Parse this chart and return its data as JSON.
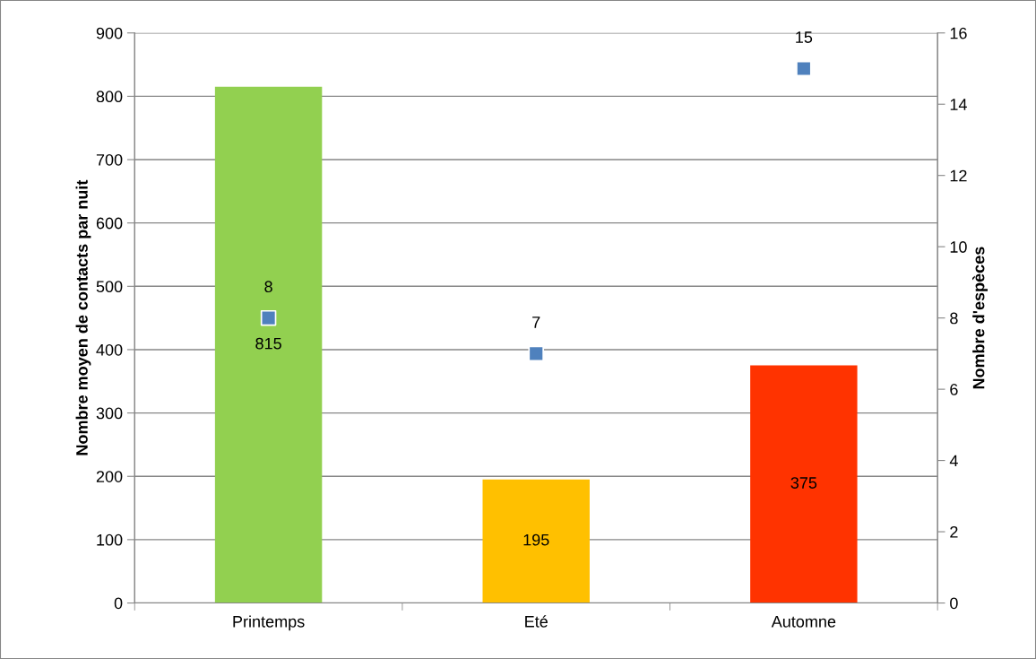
{
  "chart_data": {
    "type": "bar",
    "categories": [
      "Printemps",
      "Eté",
      "Automne"
    ],
    "series": [
      {
        "values": [
          815,
          195,
          375
        ],
        "colors": [
          "#92d050",
          "#ffc000",
          "#ff3300"
        ]
      },
      {
        "type": "scatter",
        "axis": "y2",
        "values": [
          8,
          7,
          15
        ],
        "color": "#4f81bd",
        "marker": "square"
      }
    ],
    "ylabel": "Nombre moyen de contacts par nuit",
    "y2label": "Nombre d'espèces",
    "ylim": [
      0,
      900
    ],
    "yticks": [
      0,
      100,
      200,
      300,
      400,
      500,
      600,
      700,
      800,
      900
    ],
    "y2lim": [
      0,
      16
    ],
    "y2ticks": [
      0,
      2,
      4,
      6,
      8,
      10,
      12,
      14,
      16
    ],
    "grid": "y",
    "data_labels": true
  }
}
